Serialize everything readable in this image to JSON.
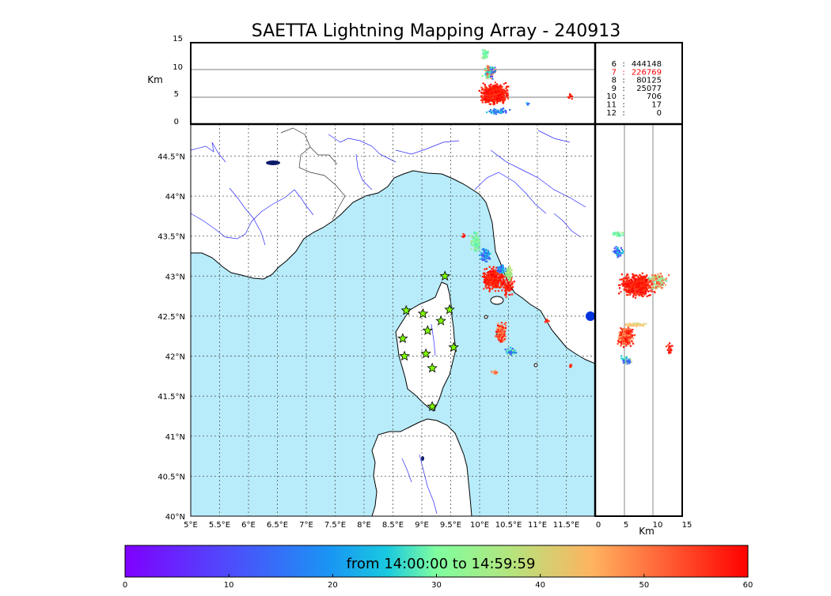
{
  "title": "SAETTA Lightning Mapping Array - 240913",
  "altitude_panel": {
    "unit_label": "Km",
    "ticks": [
      "15",
      "10",
      "5",
      "0"
    ]
  },
  "map": {
    "lat_ticks": [
      "44.5°N",
      "44°N",
      "43.5°N",
      "43°N",
      "42.5°N",
      "42°N",
      "41.5°N",
      "41°N",
      "40.5°N",
      "40°N"
    ],
    "lon_ticks": [
      "5°E",
      "5.5°E",
      "6°E",
      "6.5°E",
      "7°E",
      "7.5°E",
      "8°E",
      "8.5°E",
      "9°E",
      "9.5°E",
      "10°E",
      "10.5°E",
      "11°E",
      "11.5°E"
    ],
    "sea_color": "#b8ecfb",
    "land_color": "#ffffff",
    "river_color": "#0000ff",
    "station_color": "#7fff00",
    "stations": [
      {
        "lon": 9.4,
        "lat": 43.0
      },
      {
        "lon": 8.73,
        "lat": 42.57
      },
      {
        "lon": 9.02,
        "lat": 42.53
      },
      {
        "lon": 9.48,
        "lat": 42.58
      },
      {
        "lon": 9.33,
        "lat": 42.44
      },
      {
        "lon": 9.1,
        "lat": 42.32
      },
      {
        "lon": 8.67,
        "lat": 42.22
      },
      {
        "lon": 9.55,
        "lat": 42.11
      },
      {
        "lon": 9.07,
        "lat": 42.03
      },
      {
        "lon": 8.7,
        "lat": 42.0
      },
      {
        "lon": 9.18,
        "lat": 41.85
      },
      {
        "lon": 9.18,
        "lat": 41.37
      }
    ]
  },
  "side_panel": {
    "unit_label": "Km",
    "ticks": [
      "0",
      "5",
      "10",
      "15"
    ]
  },
  "stats": [
    {
      "key": "6",
      "sep": ":",
      "value": "444148",
      "color": "#000000"
    },
    {
      "key": "7",
      "sep": ":",
      "value": "226769",
      "color": "#ff0000"
    },
    {
      "key": "8",
      "sep": ":",
      "value": "80125",
      "color": "#000000"
    },
    {
      "key": "9",
      "sep": ":",
      "value": "25077",
      "color": "#000000"
    },
    {
      "key": "10",
      "sep": ":",
      "value": "706",
      "color": "#000000"
    },
    {
      "key": "11",
      "sep": ":",
      "value": "17",
      "color": "#000000"
    },
    {
      "key": "12",
      "sep": ":",
      "value": "0",
      "color": "#000000"
    }
  ],
  "colorbar": {
    "label": "from 14:00:00 to 14:59:59",
    "ticks": [
      "0",
      "10",
      "20",
      "30",
      "40",
      "50",
      "60"
    ],
    "range": [
      0,
      60
    ]
  }
}
